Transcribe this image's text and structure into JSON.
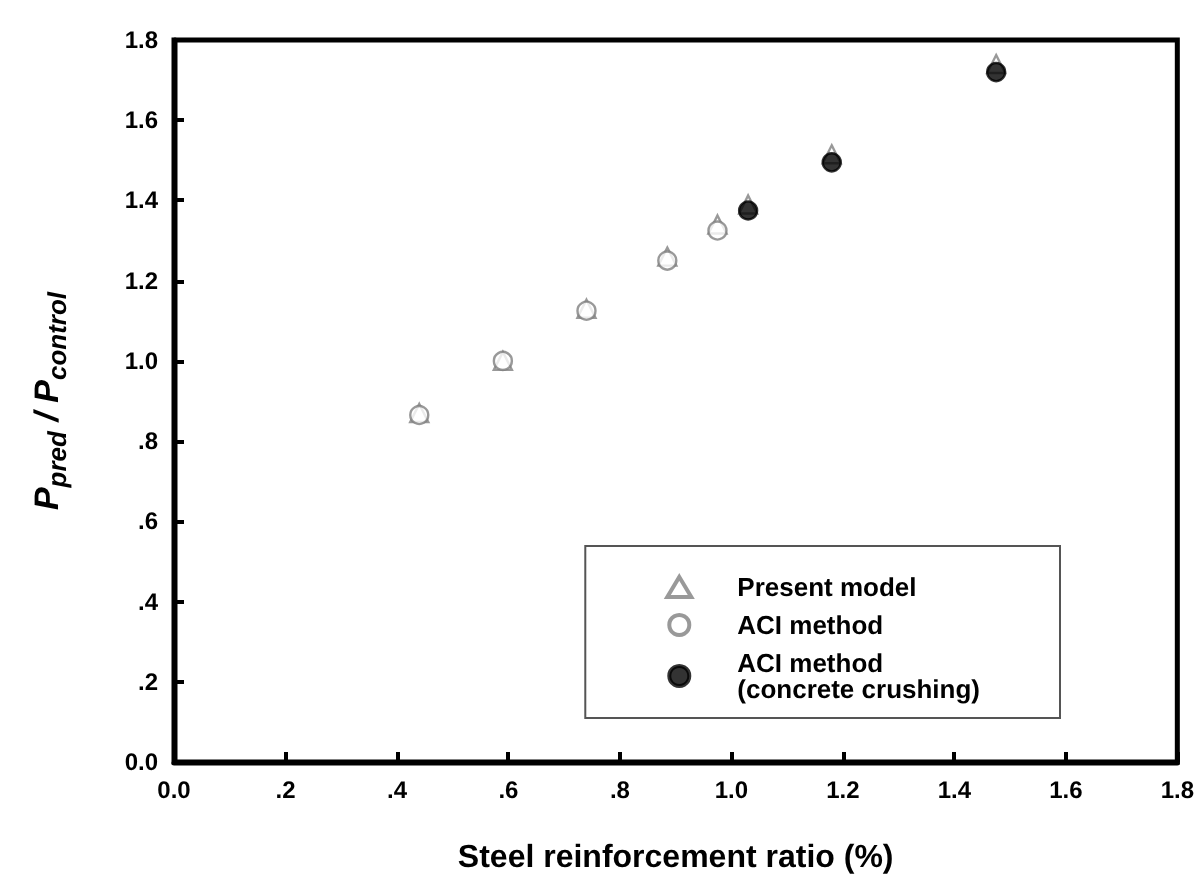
{
  "chart_data": {
    "type": "scatter",
    "xlabel": "Steel reinforcement ratio (%)",
    "ylabel": "P$_{pred}$ / P$_{control}$",
    "xlim": [
      0,
      1.8
    ],
    "ylim": [
      0,
      1.8
    ],
    "xticks": [
      {
        "value": 0,
        "label": "0.0"
      },
      {
        "value": 0.2,
        "label": ".2"
      },
      {
        "value": 0.4,
        "label": ".4"
      },
      {
        "value": 0.6,
        "label": ".6"
      },
      {
        "value": 0.8,
        "label": ".8"
      },
      {
        "value": 1,
        "label": "1.0"
      },
      {
        "value": 1.2,
        "label": "1.2"
      },
      {
        "value": 1.4,
        "label": "1.4"
      },
      {
        "value": 1.6,
        "label": "1.6"
      },
      {
        "value": 1.8,
        "label": "1.8"
      }
    ],
    "yticks": [
      {
        "value": 0,
        "label": "0.0"
      },
      {
        "value": 0.2,
        "label": ".2"
      },
      {
        "value": 0.4,
        "label": ".4"
      },
      {
        "value": 0.6,
        "label": ".6"
      },
      {
        "value": 0.8,
        "label": ".8"
      },
      {
        "value": 1,
        "label": "1.0"
      },
      {
        "value": 1.2,
        "label": "1.2"
      },
      {
        "value": 1.4,
        "label": "1.4"
      },
      {
        "value": 1.6,
        "label": "1.6"
      },
      {
        "value": 1.8,
        "label": "1.8"
      }
    ],
    "grid": false,
    "legend": "bottom right",
    "series": [
      {
        "name": "Present model",
        "color": "#808080",
        "marker": "triangle",
        "x": [
          0.44,
          0.59,
          0.74,
          0.885,
          0.975,
          1.03,
          1.18,
          1.475
        ],
        "values": [
          0.87,
          1.0,
          1.13,
          1.26,
          1.34,
          1.39,
          1.515,
          1.74
        ]
      },
      {
        "name": "ACI method",
        "color": "#808080",
        "marker": "circle",
        "x": [
          0.44,
          0.59,
          0.74,
          0.885,
          0.975
        ],
        "values": [
          0.865,
          1.0,
          1.125,
          1.25,
          1.325
        ]
      },
      {
        "name": "ACI method\n(concrete crushing)",
        "color": "#000000",
        "marker": "circle",
        "x": [
          1.03,
          1.18,
          1.475
        ],
        "values": [
          1.375,
          1.495,
          1.72
        ]
      }
    ]
  }
}
